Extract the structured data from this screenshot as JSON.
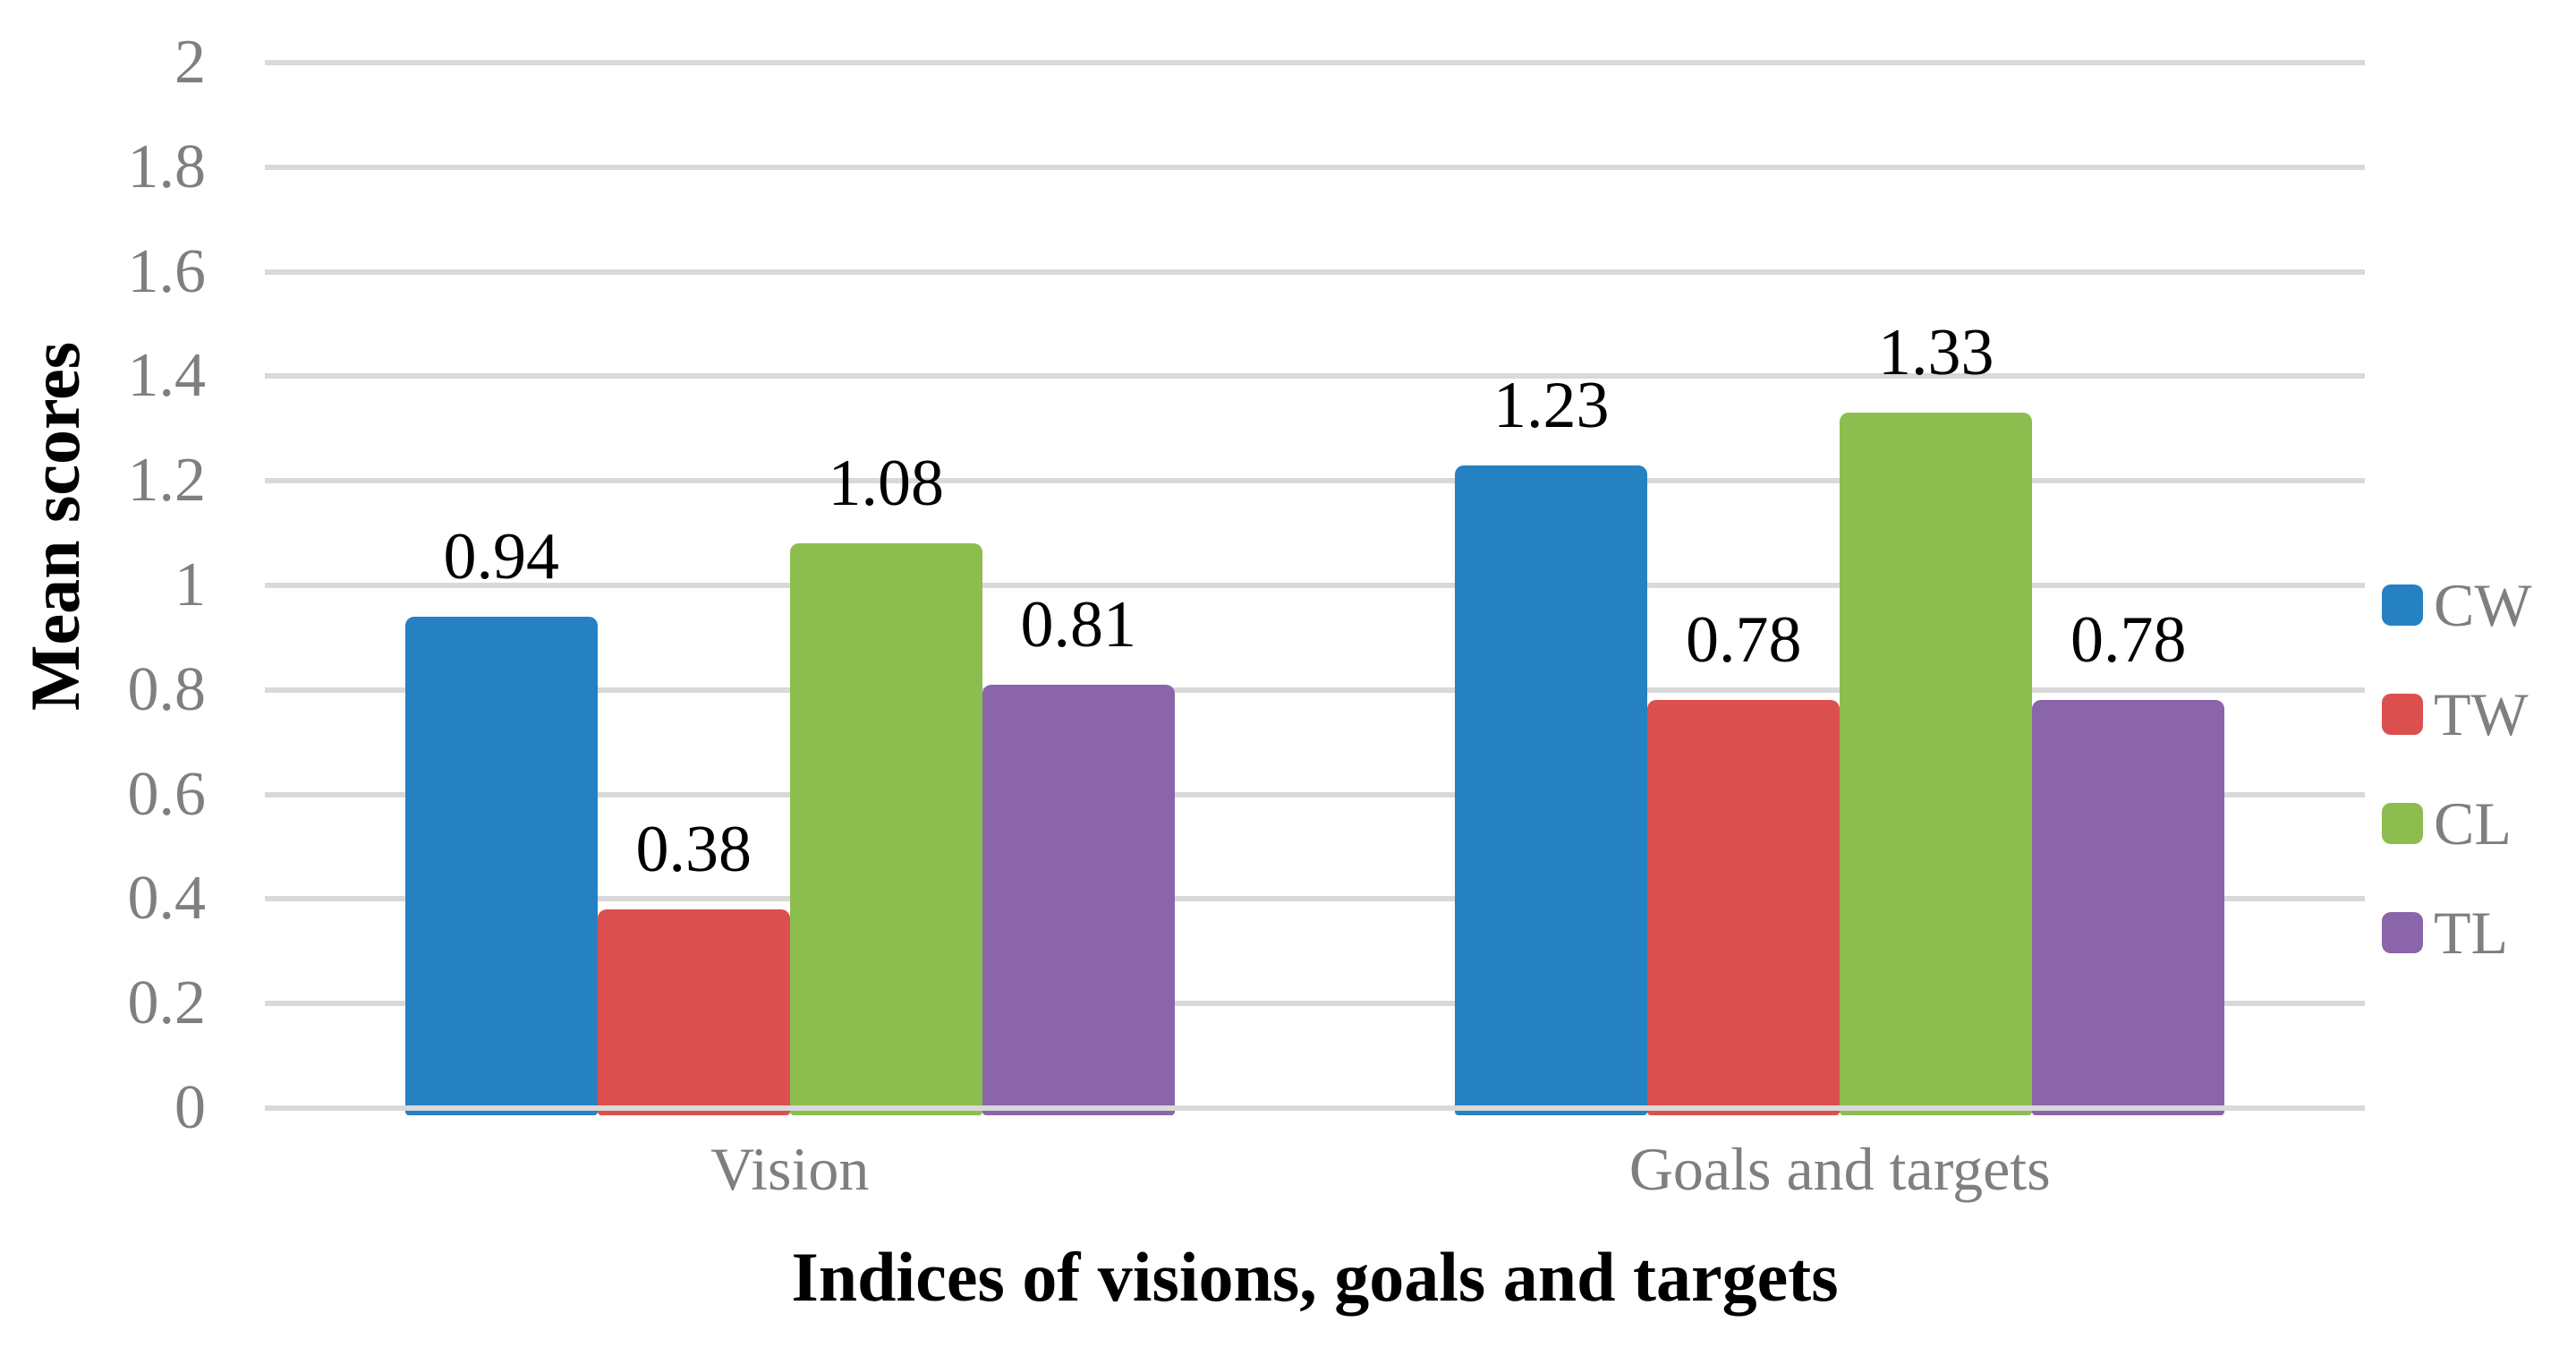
{
  "chart_data": {
    "type": "bar",
    "categories": [
      "Vision",
      "Goals and targets"
    ],
    "series": [
      {
        "name": "CW",
        "color": "#2681C2",
        "values": [
          0.94,
          1.23
        ]
      },
      {
        "name": "TW",
        "color": "#DB504E",
        "values": [
          0.38,
          0.78
        ]
      },
      {
        "name": "CL",
        "color": "#8CBD4F",
        "values": [
          1.08,
          1.33
        ]
      },
      {
        "name": "TL",
        "color": "#8B65A9",
        "values": [
          0.81,
          0.78
        ]
      }
    ],
    "title": "",
    "xlabel": "Indices of visions, goals and targets",
    "ylabel": "Mean scores",
    "ylim": [
      0,
      2
    ],
    "ytick_step": 0.2,
    "yticks": [
      "0",
      "0.2",
      "0.4",
      "0.6",
      "0.8",
      "1",
      "1.2",
      "1.4",
      "1.6",
      "1.8",
      "2"
    ],
    "grid": true,
    "gridline_color": "#D9D9D9",
    "axis_text_color": "#7F7F7F",
    "data_label_color": "#000000",
    "legend_position": "right",
    "data_labels": [
      "0.94",
      "0.38",
      "1.08",
      "0.81",
      "1.23",
      "0.78",
      "1.33",
      "0.78"
    ],
    "data_label_decimals": 2
  }
}
